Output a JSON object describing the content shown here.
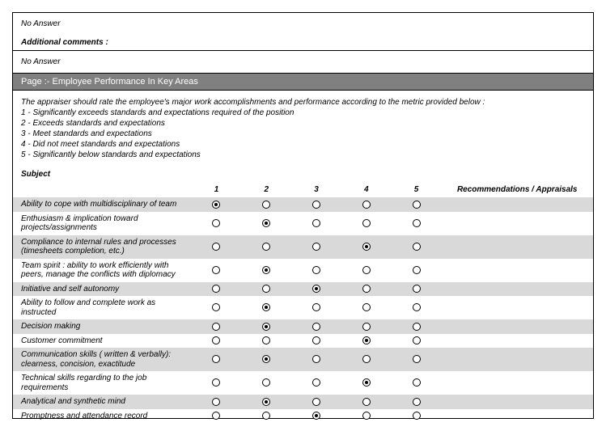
{
  "top": {
    "no_answer_1": "No Answer",
    "additional_comments_heading": "Additional comments :",
    "no_answer_2": "No Answer"
  },
  "page_header": "Page :- Employee Performance In Key Areas",
  "instructions": {
    "intro": "The appraiser should rate the employee's major work accomplishments and performance according to the metric provided below :",
    "l1": "1 - Significantly exceeds standards and expectations required of the position",
    "l2": "2 - Exceeds standards and expectations",
    "l3": "3 - Meet standards and expectations",
    "l4": "4 - Did not meet standards and expectations",
    "l5": "5 - Significantly below standards and expectations"
  },
  "subject_heading": "Subject",
  "headers": {
    "c1": "1",
    "c2": "2",
    "c3": "3",
    "c4": "4",
    "c5": "5",
    "rec": "Recommendations / Appraisals"
  },
  "rows": [
    {
      "label": "Ability to cope with multidisciplinary of team",
      "selected": 1,
      "shaded": true
    },
    {
      "label": "Enthusiasm & implication toward projects/assignments",
      "selected": 2,
      "shaded": false
    },
    {
      "label": "Compliance to internal rules and processes (timesheets completion, etc.)",
      "selected": 4,
      "shaded": true
    },
    {
      "label": "Team spirit : ability to work efficiently with peers, manage the conflicts with diplomacy",
      "selected": 2,
      "shaded": false
    },
    {
      "label": "Initiative and self autonomy",
      "selected": 3,
      "shaded": true
    },
    {
      "label": "Ability to follow and complete work as instructed",
      "selected": 2,
      "shaded": false
    },
    {
      "label": "Decision making",
      "selected": 2,
      "shaded": true
    },
    {
      "label": "Customer commitment",
      "selected": 4,
      "shaded": false
    },
    {
      "label": "Communication skills ( written & verbally): clearness, concision, exactitude",
      "selected": 2,
      "shaded": true
    },
    {
      "label": "Technical skills regarding to the job requirements",
      "selected": 4,
      "shaded": false
    },
    {
      "label": "Analytical and synthetic mind",
      "selected": 2,
      "shaded": true
    },
    {
      "label": "Promptness and attendance record",
      "selected": 3,
      "shaded": false
    }
  ],
  "colors": {
    "header_bg": "#808080",
    "header_fg": "#ffffff",
    "shaded_row": "#d9d9d9",
    "border": "#000000",
    "text": "#000000",
    "bg": "#ffffff"
  },
  "typography": {
    "font_family": "Arial, sans-serif",
    "base_size_pt": 10,
    "italic_most": true
  }
}
